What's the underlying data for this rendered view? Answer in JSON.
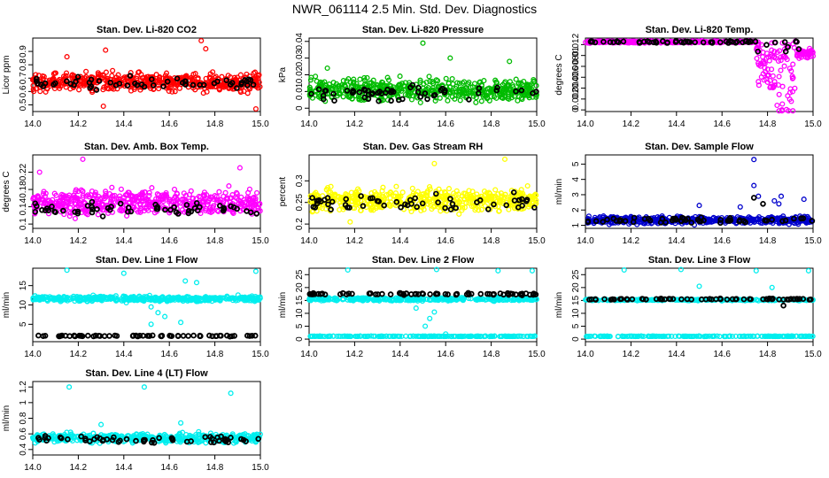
{
  "figure": {
    "title": "NWR_061114  2.5 Min. Std. Dev. Diagnostics",
    "black_marker_color": "#000000"
  },
  "chart_data": [
    {
      "type": "scatter",
      "title": "Stan. Dev. Li-820 CO2",
      "ylabel": "Licor ppm",
      "xlim": [
        14.0,
        15.0
      ],
      "ylim": [
        0.45,
        1.0
      ],
      "xticks": [
        14.0,
        14.2,
        14.4,
        14.6,
        14.8,
        15.0
      ],
      "yticks": [
        0.5,
        0.6,
        0.7,
        0.8,
        0.9
      ],
      "color": "#ff0000",
      "series": [
        {
          "name": "colored",
          "pattern": "band",
          "center": 0.67,
          "spread": 0.07,
          "n": 520,
          "outliers": [
            [
              14.32,
              0.91
            ],
            [
              14.74,
              0.98
            ],
            [
              14.76,
              0.92
            ],
            [
              14.15,
              0.86
            ],
            [
              14.98,
              0.47
            ],
            [
              14.31,
              0.49
            ]
          ]
        },
        {
          "name": "black",
          "pattern": "band",
          "center": 0.66,
          "spread": 0.05,
          "n": 55,
          "outliers": []
        }
      ]
    },
    {
      "type": "scatter",
      "title": "Stan. Dev. Li-820 Pressure",
      "ylabel": "kPa",
      "xlim": [
        14.0,
        15.0
      ],
      "ylim": [
        -0.002,
        0.042
      ],
      "xticks": [
        14.0,
        14.2,
        14.4,
        14.6,
        14.8,
        15.0
      ],
      "yticks": [
        0.0,
        0.01,
        0.02,
        0.03,
        0.04
      ],
      "color": "#00bb00",
      "series": [
        {
          "name": "colored",
          "pattern": "band",
          "center": 0.011,
          "spread": 0.007,
          "n": 520,
          "outliers": [
            [
              14.5,
              0.039
            ],
            [
              14.08,
              0.024
            ],
            [
              14.62,
              0.03
            ],
            [
              14.88,
              0.028
            ]
          ]
        },
        {
          "name": "black",
          "pattern": "band",
          "center": 0.009,
          "spread": 0.005,
          "n": 55,
          "outliers": []
        }
      ]
    },
    {
      "type": "scatter",
      "title": "Stan. Dev. Li-820 Temp.",
      "ylabel": "degrees C",
      "xlim": [
        14.0,
        15.0
      ],
      "ylim": [
        -0.0003,
        0.0132
      ],
      "xticks": [
        14.0,
        14.2,
        14.4,
        14.6,
        14.8,
        15.0
      ],
      "yticks": [
        0.0,
        0.002,
        0.004,
        0.006,
        0.008,
        0.01,
        0.012
      ],
      "color": "#ff00ff",
      "series": [
        {
          "name": "colored",
          "pattern": "temp",
          "n": 560,
          "outliers": []
        },
        {
          "name": "black",
          "pattern": "tempblack",
          "n": 60,
          "outliers": []
        }
      ]
    },
    {
      "type": "scatter",
      "title": "Stan. Dev. Amb. Box Temp.",
      "ylabel": "degrees C",
      "xlim": [
        14.0,
        15.0
      ],
      "ylim": [
        0.09,
        0.26
      ],
      "xticks": [
        14.0,
        14.2,
        14.4,
        14.6,
        14.8,
        15.0
      ],
      "yticks": [
        0.1,
        0.14,
        0.18,
        0.22
      ],
      "color": "#ff00ff",
      "series": [
        {
          "name": "colored",
          "pattern": "band",
          "center": 0.15,
          "spread": 0.03,
          "n": 520,
          "outliers": [
            [
              14.22,
              0.25
            ],
            [
              14.03,
              0.22
            ],
            [
              14.91,
              0.23
            ]
          ]
        },
        {
          "name": "black",
          "pattern": "band",
          "center": 0.135,
          "spread": 0.015,
          "n": 55,
          "outliers": []
        }
      ]
    },
    {
      "type": "scatter",
      "title": "Stan. Dev. Gas Stream RH",
      "ylabel": "percent",
      "xlim": [
        14.0,
        15.0
      ],
      "ylim": [
        0.19,
        0.36
      ],
      "xticks": [
        14.0,
        14.2,
        14.4,
        14.6,
        14.8,
        15.0
      ],
      "yticks": [
        0.2,
        0.25,
        0.3
      ],
      "color": "#ffff00",
      "series": [
        {
          "name": "colored",
          "pattern": "band",
          "center": 0.255,
          "spread": 0.025,
          "n": 520,
          "outliers": [
            [
              14.86,
              0.35
            ],
            [
              14.55,
              0.34
            ],
            [
              14.18,
              0.205
            ]
          ]
        },
        {
          "name": "black",
          "pattern": "band",
          "center": 0.25,
          "spread": 0.02,
          "n": 55,
          "outliers": []
        }
      ]
    },
    {
      "type": "scatter",
      "title": "Stan. Dev. Sample Flow",
      "ylabel": "ml/min",
      "xlim": [
        14.0,
        15.0
      ],
      "ylim": [
        0.8,
        5.6
      ],
      "xticks": [
        14.0,
        14.2,
        14.4,
        14.6,
        14.8,
        15.0
      ],
      "yticks": [
        1,
        2,
        3,
        4,
        5
      ],
      "color": "#0000cc",
      "series": [
        {
          "name": "colored",
          "pattern": "band",
          "center": 1.35,
          "spread": 0.25,
          "n": 520,
          "outliers": [
            [
              14.74,
              5.3
            ],
            [
              14.74,
              3.6
            ],
            [
              14.76,
              2.9
            ],
            [
              14.83,
              2.6
            ],
            [
              14.85,
              2.4
            ],
            [
              14.86,
              2.9
            ],
            [
              14.5,
              2.3
            ],
            [
              14.96,
              2.7
            ],
            [
              14.68,
              2.2
            ]
          ]
        },
        {
          "name": "black",
          "pattern": "band",
          "center": 1.35,
          "spread": 0.18,
          "n": 55,
          "outliers": [
            [
              14.74,
              2.8
            ],
            [
              14.78,
              2.4
            ]
          ]
        }
      ]
    },
    {
      "type": "scatter",
      "title": "Stan. Dev. Line 1 Flow",
      "ylabel": "ml/min",
      "xlim": [
        14.0,
        15.0
      ],
      "ylim": [
        0.5,
        19.5
      ],
      "xticks": [
        14.0,
        14.2,
        14.4,
        14.6,
        14.8,
        15.0
      ],
      "yticks": [
        5,
        10,
        15
      ],
      "color": "#00eeee",
      "series": [
        {
          "name": "colored",
          "pattern": "band",
          "center": 11.6,
          "spread": 0.7,
          "n": 420,
          "outliers": [
            [
              14.15,
              19.0
            ],
            [
              14.4,
              18.2
            ],
            [
              14.72,
              15.8
            ],
            [
              14.98,
              18.7
            ],
            [
              14.52,
              9.5
            ],
            [
              14.55,
              8.0
            ],
            [
              14.52,
              5.0
            ],
            [
              14.58,
              7.0
            ],
            [
              14.65,
              5.5
            ],
            [
              14.67,
              16.2
            ]
          ]
        },
        {
          "name": "black",
          "pattern": "line",
          "value": 2.0,
          "spread": 0.15,
          "n": 65,
          "outliers": []
        }
      ]
    },
    {
      "type": "scatter",
      "title": "Stan. Dev. Line 2 Flow",
      "ylabel": "ml/min",
      "xlim": [
        14.0,
        15.0
      ],
      "ylim": [
        -1.0,
        27.5
      ],
      "xticks": [
        14.0,
        14.2,
        14.4,
        14.6,
        14.8,
        15.0
      ],
      "yticks": [
        0,
        5,
        10,
        15,
        20,
        25
      ],
      "color": "#00eeee",
      "series": [
        {
          "name": "colored",
          "pattern": "band",
          "center": 15.5,
          "spread": 0.7,
          "n": 330,
          "outliers": [
            [
              14.17,
              26.8
            ],
            [
              14.56,
              27.0
            ],
            [
              14.83,
              26.5
            ],
            [
              14.98,
              26.5
            ],
            [
              14.51,
              5.0
            ],
            [
              14.55,
              10.5
            ],
            [
              14.6,
              2.0
            ],
            [
              14.53,
              8.0
            ],
            [
              14.47,
              12.0
            ]
          ]
        },
        {
          "name": "colored-base",
          "pattern": "line",
          "value": 1.1,
          "spread": 0.1,
          "n": 200,
          "outliers": []
        },
        {
          "name": "black",
          "pattern": "line",
          "value": 17.5,
          "spread": 0.4,
          "n": 70,
          "outliers": []
        }
      ]
    },
    {
      "type": "scatter",
      "title": "Stan. Dev. Line 3 Flow",
      "ylabel": "ml/min",
      "xlim": [
        14.0,
        15.0
      ],
      "ylim": [
        -1.0,
        27.5
      ],
      "xticks": [
        14.0,
        14.2,
        14.4,
        14.6,
        14.8,
        15.0
      ],
      "yticks": [
        0,
        5,
        10,
        15,
        20,
        25
      ],
      "color": "#00eeee",
      "series": [
        {
          "name": "colored",
          "pattern": "line",
          "value": 15.2,
          "spread": 0.3,
          "n": 260,
          "outliers": [
            [
              14.17,
              26.8
            ],
            [
              14.42,
              27.0
            ],
            [
              14.75,
              26.5
            ],
            [
              14.98,
              26.5
            ],
            [
              14.5,
              20.5
            ],
            [
              14.82,
              20.0
            ]
          ]
        },
        {
          "name": "colored-base",
          "pattern": "line",
          "value": 1.1,
          "spread": 0.1,
          "n": 200,
          "outliers": []
        },
        {
          "name": "black",
          "pattern": "line",
          "value": 15.5,
          "spread": 0.3,
          "n": 65,
          "outliers": [
            [
              14.87,
              13.0
            ]
          ]
        }
      ]
    },
    {
      "type": "scatter",
      "title": "Stan. Dev. Line 4 (LT) Flow",
      "ylabel": "ml/min",
      "xlim": [
        14.0,
        15.0
      ],
      "ylim": [
        0.33,
        1.27
      ],
      "xticks": [
        14.0,
        14.2,
        14.4,
        14.6,
        14.8,
        15.0
      ],
      "yticks": [
        0.4,
        0.6,
        0.8,
        1.0,
        1.2
      ],
      "color": "#00eeee",
      "series": [
        {
          "name": "colored",
          "pattern": "band",
          "center": 0.55,
          "spread": 0.06,
          "n": 480,
          "outliers": [
            [
              14.16,
              1.2
            ],
            [
              14.49,
              1.2
            ],
            [
              14.87,
              1.12
            ],
            [
              14.65,
              0.74
            ],
            [
              14.3,
              0.72
            ]
          ]
        },
        {
          "name": "black",
          "pattern": "band",
          "center": 0.53,
          "spread": 0.05,
          "n": 55,
          "outliers": []
        }
      ]
    }
  ]
}
